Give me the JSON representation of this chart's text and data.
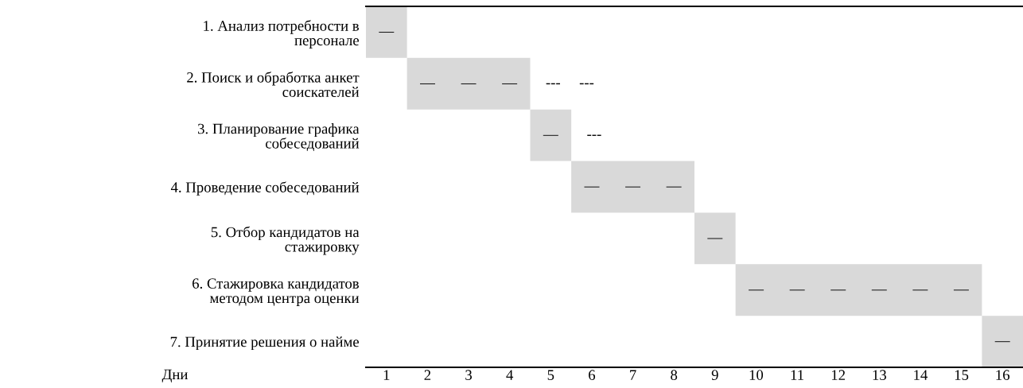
{
  "chart_data": {
    "type": "bar",
    "orientation": "horizontal",
    "categories": [
      "1. Анализ потребности в\nперсонале",
      "2. Поиск и обработка анкет\nсоискателей",
      "3. Планирование графика\nсобеседований",
      "4. Проведение собеседований",
      "5. Отбор кандидатов на\nстажировку",
      "6. Стажировка кандидатов\nметодом центра оценки",
      "7. Принятие решения о найме"
    ],
    "base": [
      0.5,
      1.5,
      4.5,
      5.5,
      8.5,
      9.5,
      15.5
    ],
    "values": [
      1,
      3,
      1,
      3,
      1,
      6,
      1
    ],
    "value_labels": [
      "—",
      "—       —       —",
      "—",
      "—       —       —",
      "—",
      "—       —       —       —       —       —",
      "—"
    ],
    "color": "#d9d9d9",
    "xlim": [
      0.5,
      16.5
    ],
    "xticks": [
      1,
      2,
      3,
      4,
      5,
      6,
      7,
      8,
      9,
      10,
      11,
      12,
      13,
      14,
      15,
      16
    ],
    "xlabel": "Дни",
    "grid": false,
    "annotations": [
      {
        "text": "---     ---",
        "x": 4.5,
        "y": "2. Поиск и обработка анкет\nсоискателей"
      },
      {
        "text": "---",
        "x": 5.5,
        "y": "3. Планирование графика\nсобеседований"
      }
    ]
  }
}
